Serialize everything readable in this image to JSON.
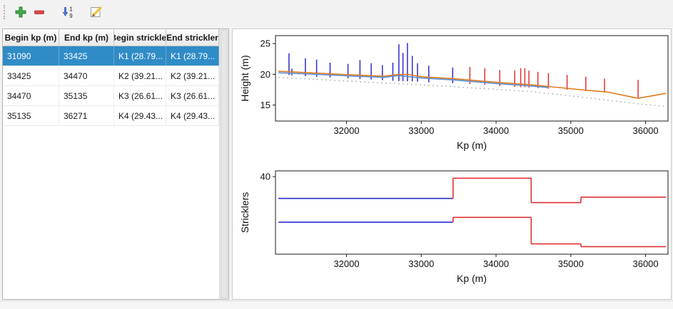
{
  "colors": {
    "selection": "#308cc6",
    "selected_series": "#2b2bd0",
    "unselected_series": "#e03232",
    "add_icon_green": "#3fae49",
    "remove_icon_red": "#e04343",
    "sort_icon_blue": "#4a72c8",
    "pencil_yellow": "#f0c040"
  },
  "toolbar": {
    "sort_digits": [
      "1",
      "9"
    ],
    "icons": [
      "plus-icon",
      "minus-icon",
      "sort-1-9-icon",
      "edit-pencil-icon"
    ]
  },
  "table": {
    "columns": [
      "Begin kp (m)",
      "End kp (m)",
      "Begin strickler",
      "End strickler"
    ],
    "rows": [
      {
        "selected": true,
        "cells": [
          "31090",
          "33425",
          "K1 (28.79...",
          "K1 (28.79..."
        ]
      },
      {
        "selected": false,
        "cells": [
          "33425",
          "34470",
          "K2 (39.21...",
          "K2 (39.21..."
        ]
      },
      {
        "selected": false,
        "cells": [
          "34470",
          "35135",
          "K3 (26.61...",
          "K3 (26.61..."
        ]
      },
      {
        "selected": false,
        "cells": [
          "35135",
          "36271",
          "K4 (29.43...",
          "K4 (29.43..."
        ]
      }
    ]
  },
  "chart_data": [
    {
      "type": "line",
      "title": "",
      "xlabel": "Kp (m)",
      "ylabel": "Height (m)",
      "xlim": [
        31050,
        36300
      ],
      "ylim": [
        12.4,
        26.3
      ],
      "xticks": [
        32000,
        33000,
        34000,
        35000,
        36000
      ],
      "yticks": [
        15,
        20,
        25
      ],
      "grid": false,
      "legend": "none",
      "spike_colors": {
        "selected": "#2b2bd0",
        "unselected": "#e03232"
      },
      "spikes": {
        "selected": [
          [
            31230,
            19.9,
            23.4
          ],
          [
            31270,
            19.85,
            20.9
          ],
          [
            31450,
            19.7,
            22.6
          ],
          [
            31600,
            19.6,
            22.4
          ],
          [
            31780,
            19.5,
            21.9
          ],
          [
            32020,
            19.35,
            21.7
          ],
          [
            32180,
            19.25,
            22.3
          ],
          [
            32330,
            19.15,
            21.8
          ],
          [
            32480,
            19.05,
            21.5
          ],
          [
            32620,
            18.95,
            21.9
          ],
          [
            32700,
            18.9,
            24.9
          ],
          [
            32755,
            18.9,
            23.5
          ],
          [
            32815,
            18.85,
            25.1
          ],
          [
            32880,
            18.85,
            23.0
          ],
          [
            32950,
            18.8,
            21.8
          ],
          [
            33100,
            18.7,
            21.4
          ],
          [
            33420,
            18.55,
            21.1
          ]
        ],
        "unselected": [
          [
            33650,
            18.4,
            21.2
          ],
          [
            33850,
            18.25,
            21.0
          ],
          [
            34050,
            18.1,
            20.7
          ],
          [
            34250,
            17.95,
            20.6
          ],
          [
            34330,
            17.9,
            21.0
          ],
          [
            34385,
            17.9,
            21.0
          ],
          [
            34440,
            17.85,
            20.6
          ],
          [
            34560,
            17.75,
            20.4
          ],
          [
            34700,
            17.65,
            20.2
          ],
          [
            34950,
            17.5,
            19.9
          ],
          [
            35200,
            17.3,
            19.6
          ],
          [
            35450,
            17.1,
            19.3
          ],
          [
            35900,
            16.1,
            19.1
          ]
        ]
      },
      "series": [
        {
          "name": "bottom-profile-orange",
          "color": "#e07a1e",
          "style": "solid",
          "points": [
            [
              31090,
              20.5
            ],
            [
              31600,
              20.2
            ],
            [
              32100,
              19.9
            ],
            [
              32500,
              19.7
            ],
            [
              32660,
              19.95
            ],
            [
              32820,
              20.0
            ],
            [
              33000,
              19.6
            ],
            [
              33425,
              19.3
            ],
            [
              34000,
              18.7
            ],
            [
              34470,
              18.3
            ],
            [
              34800,
              17.9
            ],
            [
              35135,
              17.5
            ],
            [
              35500,
              17.1
            ],
            [
              35900,
              16.1
            ],
            [
              36271,
              16.9
            ]
          ]
        },
        {
          "name": "bottom-profile-blue",
          "color": "#5b8ed2",
          "style": "solid",
          "points": [
            [
              31090,
              20.25
            ],
            [
              31600,
              20.0
            ],
            [
              32100,
              19.7
            ],
            [
              32500,
              19.5
            ],
            [
              32700,
              19.8
            ],
            [
              33000,
              19.4
            ],
            [
              33425,
              19.1
            ],
            [
              34000,
              18.5
            ],
            [
              34470,
              18.1
            ],
            [
              34700,
              17.85
            ]
          ]
        },
        {
          "name": "reference-dotted-gray",
          "color": "#bdbdbd",
          "style": "dotted",
          "points": [
            [
              31090,
              19.5
            ],
            [
              33425,
              18.0
            ],
            [
              34470,
              17.2
            ],
            [
              35135,
              16.3
            ],
            [
              35900,
              15.2
            ],
            [
              36271,
              14.8
            ]
          ]
        }
      ]
    },
    {
      "type": "step",
      "title": "",
      "xlabel": "Kp (m)",
      "ylabel": "Stricklers",
      "xlim": [
        31050,
        36300
      ],
      "ylim": [
        0,
        43
      ],
      "xticks": [
        32000,
        33000,
        34000,
        35000,
        36000
      ],
      "yticks": [
        40
      ],
      "grid": false,
      "legend": "none",
      "series": [
        {
          "name": "strickler-major-bed",
          "segments": [
            {
              "x0": 31090,
              "x1": 33425,
              "y": 28.79,
              "color": "#2b2bd0"
            },
            {
              "x0": 33425,
              "x1": 34470,
              "y": 39.21,
              "color": "#e03232"
            },
            {
              "x0": 34470,
              "x1": 35135,
              "y": 26.61,
              "color": "#e03232"
            },
            {
              "x0": 35135,
              "x1": 36271,
              "y": 29.43,
              "color": "#e03232"
            }
          ]
        },
        {
          "name": "strickler-minor-bed",
          "segments": [
            {
              "x0": 31090,
              "x1": 33425,
              "y": 16.5,
              "color": "#2b2bd0"
            },
            {
              "x0": 33425,
              "x1": 34470,
              "y": 19.0,
              "color": "#e03232"
            },
            {
              "x0": 34470,
              "x1": 35135,
              "y": 5.3,
              "color": "#e03232"
            },
            {
              "x0": 35135,
              "x1": 36271,
              "y": 3.9,
              "color": "#e03232"
            }
          ]
        }
      ]
    }
  ]
}
